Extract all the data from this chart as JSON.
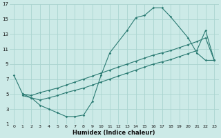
{
  "xlabel": "Humidex (Indice chaleur)",
  "xlim": [
    -0.5,
    23.5
  ],
  "ylim": [
    1,
    17
  ],
  "xticks": [
    0,
    1,
    2,
    3,
    4,
    5,
    6,
    7,
    8,
    9,
    10,
    11,
    12,
    13,
    14,
    15,
    16,
    17,
    18,
    19,
    20,
    21,
    22,
    23
  ],
  "yticks": [
    1,
    3,
    5,
    7,
    9,
    11,
    13,
    15,
    17
  ],
  "background_color": "#cceae7",
  "grid_color": "#aad4d0",
  "line_color": "#2a7a72",
  "line1_x": [
    0,
    1,
    2,
    3,
    4,
    5,
    6,
    7,
    8,
    9,
    10,
    11,
    13,
    14,
    15,
    16,
    17,
    18,
    20,
    21,
    22,
    23
  ],
  "line1_y": [
    7.5,
    5.0,
    4.5,
    3.5,
    3.0,
    2.5,
    2.0,
    2.0,
    2.2,
    4.0,
    7.5,
    10.5,
    13.5,
    15.2,
    15.5,
    16.5,
    16.5,
    15.3,
    12.5,
    10.5,
    9.5,
    9.5
  ],
  "line2_x": [
    1,
    2,
    3,
    4,
    5,
    6,
    7,
    8,
    9,
    10,
    11,
    12,
    13,
    14,
    15,
    16,
    17,
    18,
    19,
    20,
    21,
    22,
    23
  ],
  "line2_y": [
    5.0,
    4.8,
    5.2,
    5.5,
    5.8,
    6.2,
    6.6,
    7.0,
    7.4,
    7.8,
    8.2,
    8.6,
    9.0,
    9.4,
    9.8,
    10.2,
    10.5,
    10.8,
    11.2,
    11.6,
    12.0,
    12.5,
    9.5
  ],
  "line3_x": [
    1,
    2,
    3,
    4,
    5,
    6,
    7,
    8,
    9,
    10,
    11,
    12,
    13,
    14,
    15,
    16,
    17,
    18,
    19,
    20,
    21,
    22,
    23
  ],
  "line3_y": [
    4.8,
    4.5,
    4.2,
    4.5,
    4.8,
    5.2,
    5.5,
    5.8,
    6.2,
    6.6,
    7.0,
    7.4,
    7.8,
    8.2,
    8.6,
    9.0,
    9.3,
    9.6,
    10.0,
    10.4,
    10.8,
    13.5,
    9.5
  ]
}
